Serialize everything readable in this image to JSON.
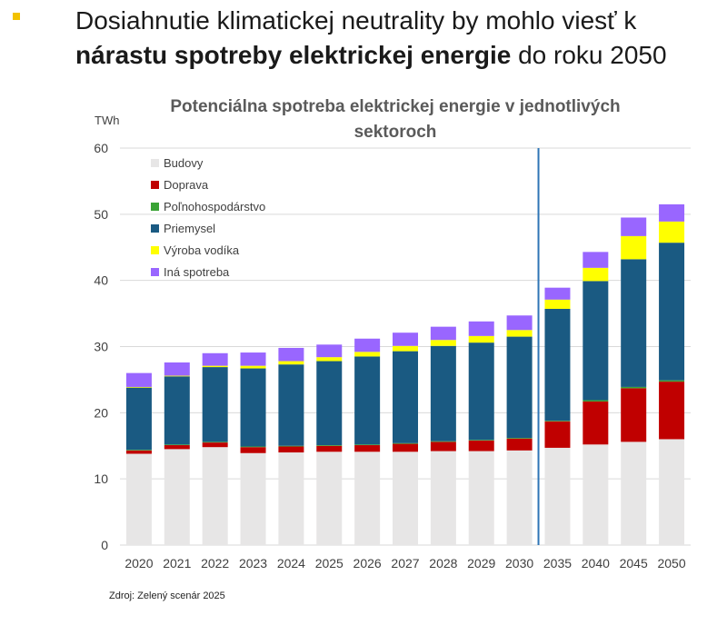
{
  "slide": {
    "bullet_color": "#f2c200",
    "heading_part1": "Dosiahnutie klimatickej neutrality by mohlo viesť k",
    "heading_bold": "nárastu spotreby elektrickej energie",
    "heading_part2": " do roku 2050"
  },
  "source_note": "Zdroj: Zelený scenár 2025",
  "chart_data": {
    "type": "bar",
    "stacked": true,
    "title": "Potenciálna spotreba elektrickej energie v jednotlivých sektoroch",
    "title_line1": "Potenciálna spotreba elektrickej energie v jednotlivých",
    "title_line2": "sektoroch",
    "ylabel": "TWh",
    "xlabel": "",
    "ylim": [
      0,
      60
    ],
    "yticks": [
      0,
      10,
      20,
      30,
      40,
      50,
      60
    ],
    "grid": true,
    "legend_position": "top-left",
    "divider_after": "2030",
    "categories": [
      "2020",
      "2021",
      "2022",
      "2023",
      "2024",
      "2025",
      "2026",
      "2027",
      "2028",
      "2029",
      "2030",
      "2035",
      "2040",
      "2045",
      "2050"
    ],
    "series": [
      {
        "name": "Budovy",
        "color": "#e7e6e6",
        "values": [
          13.8,
          14.5,
          14.8,
          13.9,
          14.0,
          14.1,
          14.1,
          14.1,
          14.2,
          14.2,
          14.3,
          14.7,
          15.2,
          15.6,
          16.0
        ]
      },
      {
        "name": "Doprava",
        "color": "#c00000",
        "values": [
          0.5,
          0.6,
          0.7,
          0.9,
          0.9,
          0.9,
          1.0,
          1.2,
          1.4,
          1.6,
          1.8,
          4.0,
          6.5,
          8.1,
          8.7
        ]
      },
      {
        "name": "Poľnohospodárstvo",
        "color": "#3aa335",
        "values": [
          0.1,
          0.1,
          0.1,
          0.1,
          0.1,
          0.1,
          0.1,
          0.1,
          0.1,
          0.1,
          0.1,
          0.1,
          0.2,
          0.2,
          0.2
        ]
      },
      {
        "name": "Priemysel",
        "color": "#1a5a82",
        "values": [
          9.4,
          10.3,
          11.3,
          11.8,
          12.3,
          12.7,
          13.3,
          13.9,
          14.4,
          14.7,
          15.3,
          16.9,
          18.0,
          19.3,
          20.8
        ]
      },
      {
        "name": "Výroba vodíka",
        "color": "#ffff00",
        "values": [
          0.1,
          0.1,
          0.2,
          0.4,
          0.5,
          0.6,
          0.7,
          0.8,
          0.9,
          1.0,
          1.0,
          1.4,
          2.0,
          3.5,
          3.2
        ]
      },
      {
        "name": "Iná spotreba",
        "color": "#9966ff",
        "values": [
          2.1,
          2.0,
          1.9,
          2.0,
          2.0,
          1.9,
          2.0,
          2.0,
          2.0,
          2.2,
          2.2,
          1.8,
          2.4,
          2.8,
          2.6
        ]
      }
    ]
  }
}
